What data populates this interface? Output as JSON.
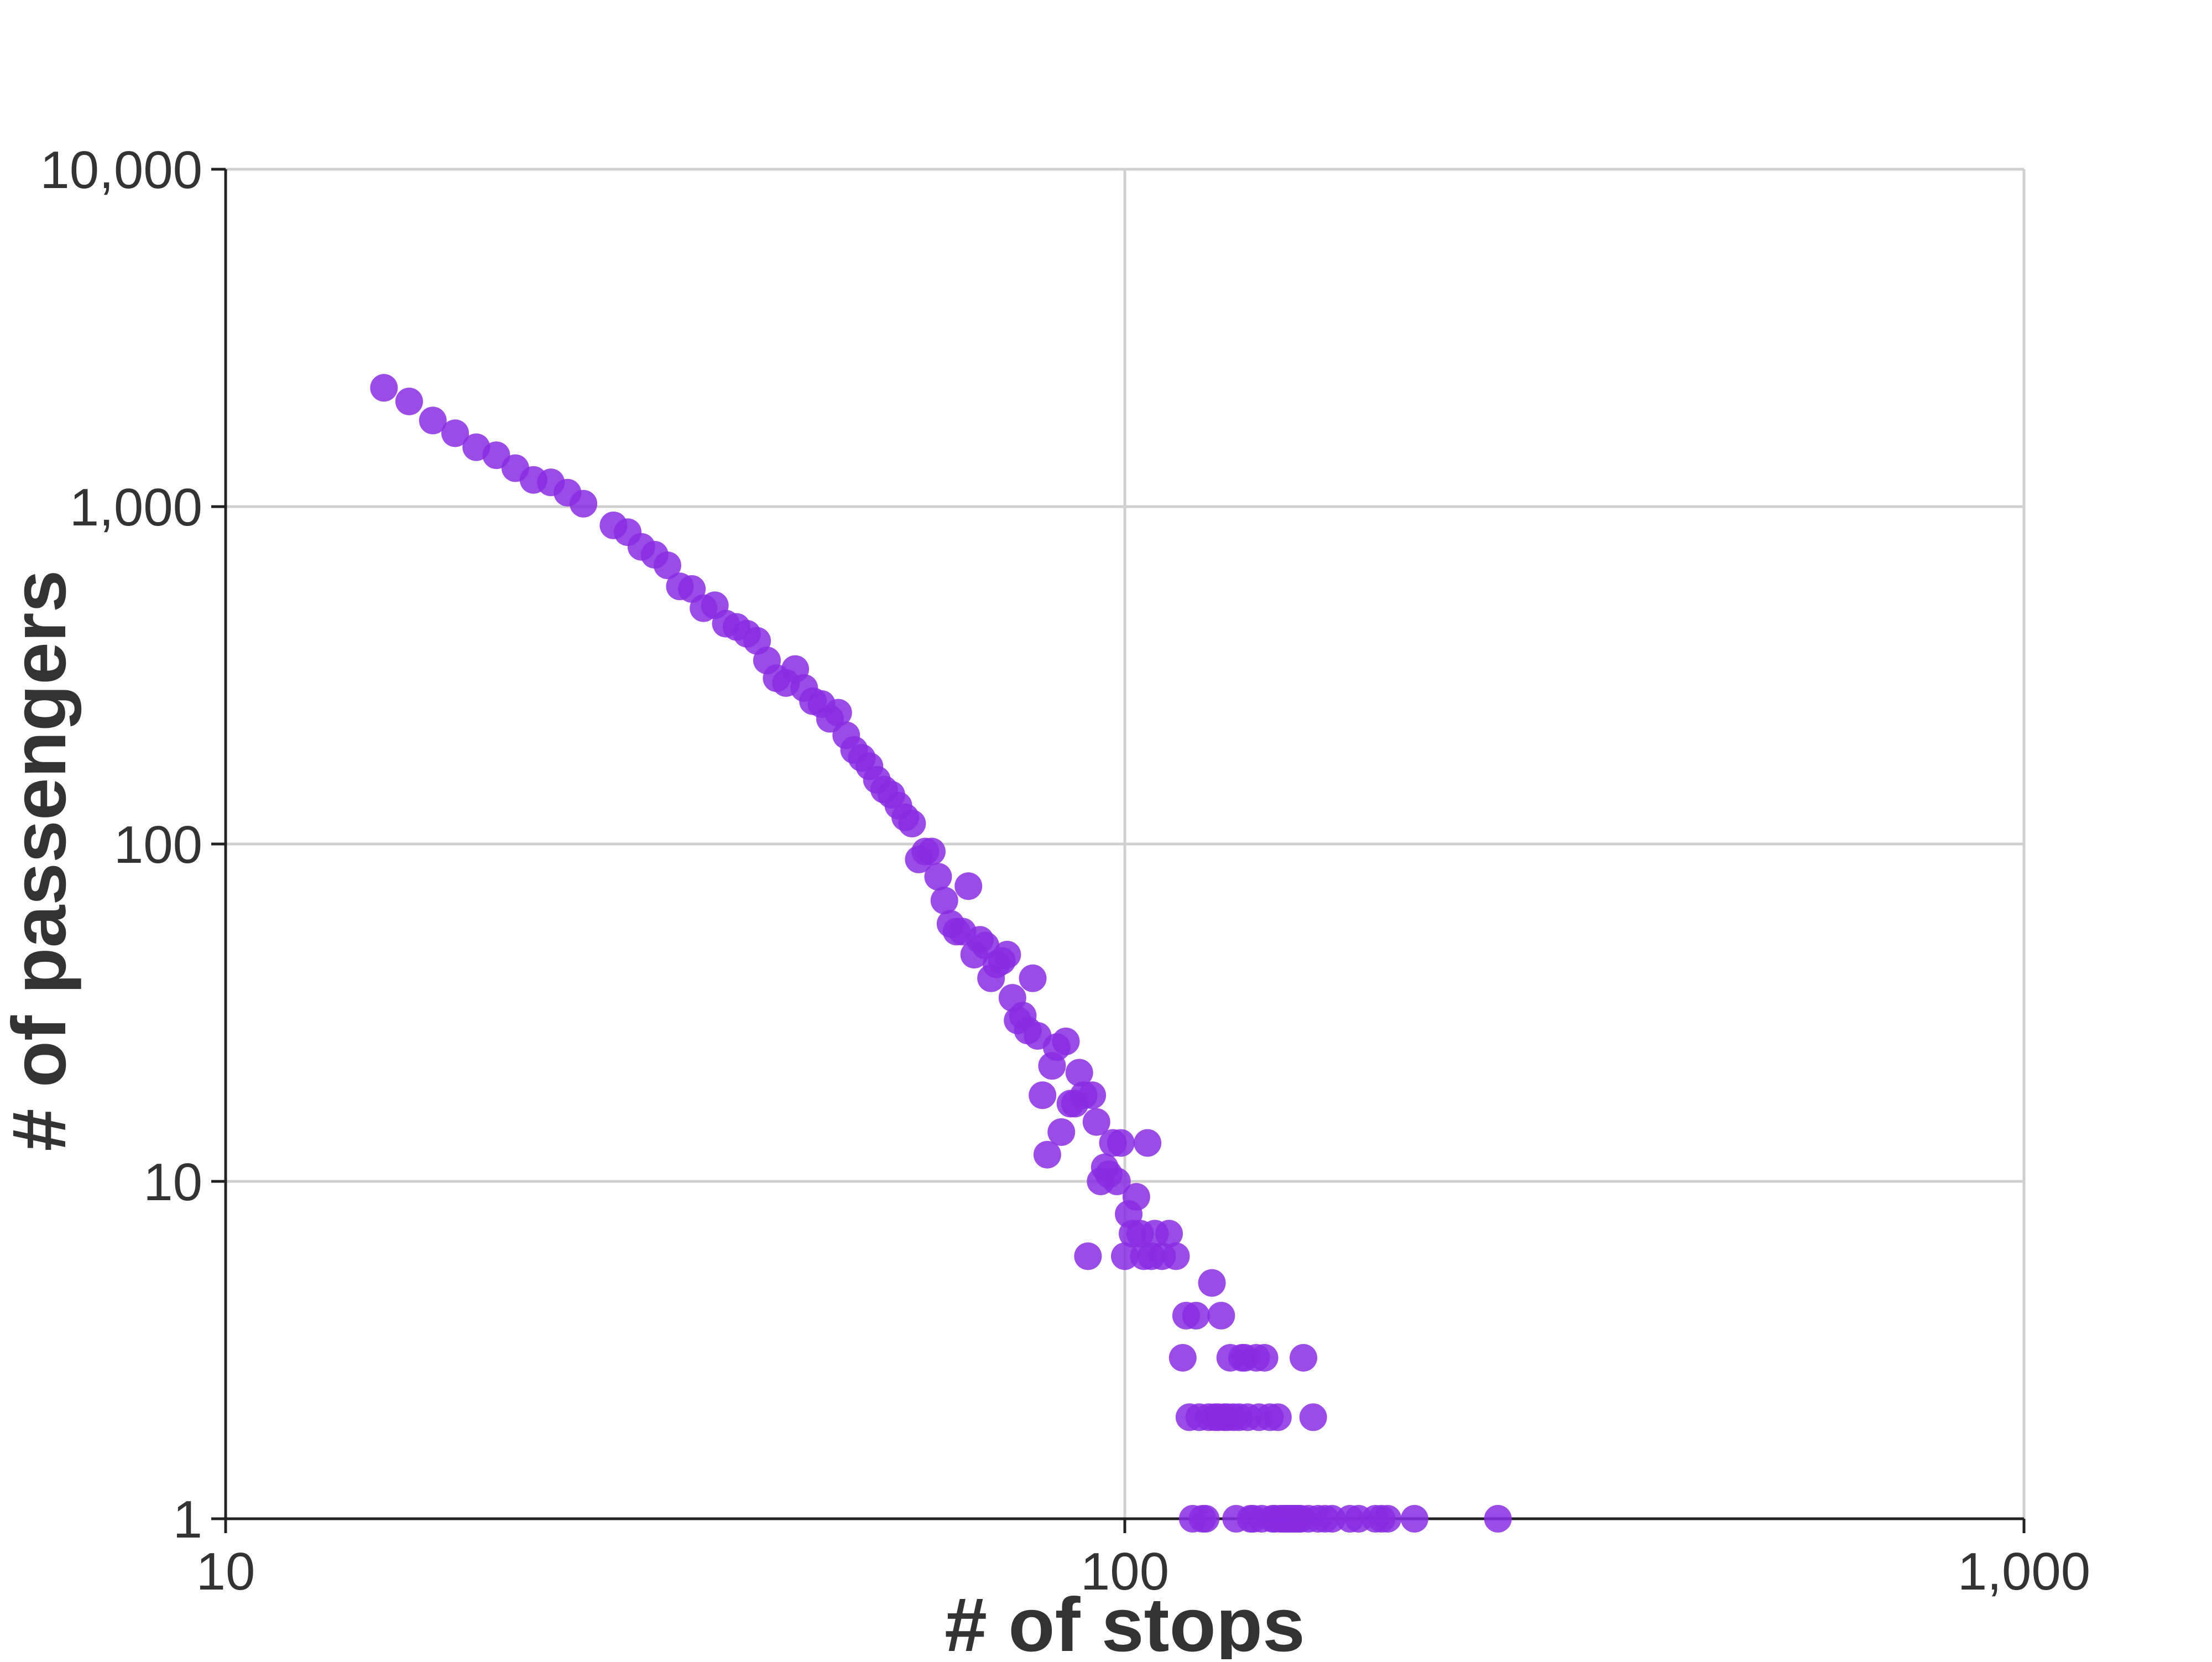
{
  "chart_data": {
    "type": "scatter",
    "xlabel": "# of stops",
    "ylabel": "# of passengers",
    "xscale": "log",
    "yscale": "log",
    "xlim": [
      10,
      1000
    ],
    "ylim": [
      1,
      10000
    ],
    "x_ticks": [
      10,
      100,
      1000
    ],
    "x_tick_labels": [
      "10",
      "100",
      "1,000"
    ],
    "y_ticks": [
      1,
      10,
      100,
      1000,
      10000
    ],
    "y_tick_labels": [
      "1",
      "10",
      "100",
      "1,000",
      "10,000"
    ],
    "grid": true,
    "colors": {
      "point": "#8a2be2",
      "grid": "#d0d0d0",
      "axis": "#222222",
      "text": "#333333"
    },
    "points": [
      [
        15,
        2250
      ],
      [
        16,
        2050
      ],
      [
        17,
        1800
      ],
      [
        18,
        1650
      ],
      [
        19,
        1500
      ],
      [
        20,
        1420
      ],
      [
        21,
        1300
      ],
      [
        22,
        1200
      ],
      [
        23,
        1180
      ],
      [
        24,
        1100
      ],
      [
        25,
        1020
      ],
      [
        27,
        880
      ],
      [
        28,
        840
      ],
      [
        29,
        760
      ],
      [
        30,
        720
      ],
      [
        31,
        670
      ],
      [
        32,
        580
      ],
      [
        33,
        570
      ],
      [
        34,
        500
      ],
      [
        35,
        510
      ],
      [
        36,
        450
      ],
      [
        37,
        440
      ],
      [
        38,
        420
      ],
      [
        39,
        400
      ],
      [
        40,
        350
      ],
      [
        41,
        310
      ],
      [
        42,
        300
      ],
      [
        43,
        330
      ],
      [
        44,
        290
      ],
      [
        45,
        265
      ],
      [
        46,
        260
      ],
      [
        47,
        235
      ],
      [
        48,
        245
      ],
      [
        49,
        210
      ],
      [
        50,
        190
      ],
      [
        51,
        180
      ],
      [
        52,
        170
      ],
      [
        53,
        155
      ],
      [
        54,
        145
      ],
      [
        55,
        140
      ],
      [
        56,
        130
      ],
      [
        57,
        120
      ],
      [
        58,
        115
      ],
      [
        59,
        90
      ],
      [
        60,
        95
      ],
      [
        61,
        95
      ],
      [
        62,
        80
      ],
      [
        63,
        68
      ],
      [
        64,
        58
      ],
      [
        65,
        55
      ],
      [
        66,
        55
      ],
      [
        67,
        75
      ],
      [
        68,
        47
      ],
      [
        69,
        52
      ],
      [
        70,
        50
      ],
      [
        71,
        40
      ],
      [
        72,
        44
      ],
      [
        73,
        45
      ],
      [
        74,
        47
      ],
      [
        75,
        35
      ],
      [
        76,
        30
      ],
      [
        77,
        31
      ],
      [
        78,
        28
      ],
      [
        79,
        40
      ],
      [
        80,
        27
      ],
      [
        81,
        18
      ],
      [
        82,
        12
      ],
      [
        83,
        22
      ],
      [
        84,
        25
      ],
      [
        85,
        14
      ],
      [
        86,
        26
      ],
      [
        87,
        17
      ],
      [
        88,
        17
      ],
      [
        89,
        21
      ],
      [
        90,
        18
      ],
      [
        91,
        6
      ],
      [
        92,
        18
      ],
      [
        93,
        15
      ],
      [
        94,
        10
      ],
      [
        95,
        11
      ],
      [
        96,
        10.5
      ],
      [
        97,
        13
      ],
      [
        98,
        10
      ],
      [
        99,
        13
      ],
      [
        100,
        6
      ],
      [
        101,
        8
      ],
      [
        102,
        7
      ],
      [
        103,
        9
      ],
      [
        104,
        7
      ],
      [
        105,
        6
      ],
      [
        106,
        13
      ],
      [
        107,
        6
      ],
      [
        108,
        7
      ],
      [
        110,
        6
      ],
      [
        112,
        7
      ],
      [
        114,
        6
      ],
      [
        116,
        3
      ],
      [
        117,
        4
      ],
      [
        118,
        2
      ],
      [
        119,
        1
      ],
      [
        120,
        4
      ],
      [
        121,
        2
      ],
      [
        122,
        1
      ],
      [
        123,
        1
      ],
      [
        124,
        2
      ],
      [
        125,
        5
      ],
      [
        126,
        2
      ],
      [
        127,
        2
      ],
      [
        128,
        4
      ],
      [
        129,
        2
      ],
      [
        130,
        2
      ],
      [
        131,
        3
      ],
      [
        132,
        2
      ],
      [
        133,
        1
      ],
      [
        134,
        2
      ],
      [
        135,
        3
      ],
      [
        136,
        3
      ],
      [
        137,
        2
      ],
      [
        138,
        1
      ],
      [
        139,
        1
      ],
      [
        140,
        3
      ],
      [
        141,
        2
      ],
      [
        142,
        1
      ],
      [
        143,
        3
      ],
      [
        145,
        2
      ],
      [
        146,
        1
      ],
      [
        147,
        1
      ],
      [
        148,
        2
      ],
      [
        149,
        1
      ],
      [
        150,
        1
      ],
      [
        151,
        1
      ],
      [
        152,
        1
      ],
      [
        153,
        1
      ],
      [
        154,
        1
      ],
      [
        155,
        1
      ],
      [
        156,
        1
      ],
      [
        157,
        1
      ],
      [
        158,
        3
      ],
      [
        160,
        1
      ],
      [
        162,
        2
      ],
      [
        164,
        1
      ],
      [
        167,
        1
      ],
      [
        170,
        1
      ],
      [
        178,
        1
      ],
      [
        182,
        1
      ],
      [
        190,
        1
      ],
      [
        193,
        1
      ],
      [
        196,
        1
      ],
      [
        210,
        1
      ],
      [
        260,
        1
      ]
    ]
  }
}
